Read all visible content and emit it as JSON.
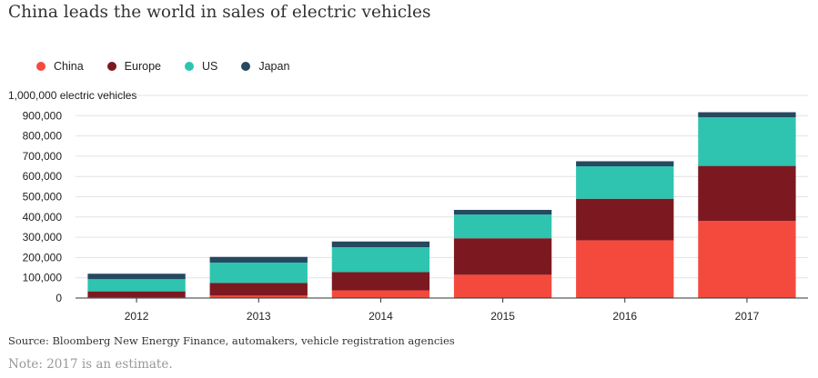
{
  "title": "China leads the world in sales of electric vehicles",
  "source": "Source: Bloomberg New Energy Finance, automakers, vehicle registration agencies",
  "note": "Note: 2017 is an estimate.",
  "chart_data": {
    "type": "bar",
    "stacked": true,
    "title": "China leads the world in sales of electric vehicles",
    "ylabel": "electric vehicles",
    "ylim": [
      0,
      1000000
    ],
    "yticks": [
      0,
      100000,
      200000,
      300000,
      400000,
      500000,
      600000,
      700000,
      800000,
      900000,
      1000000
    ],
    "ytick_labels": [
      "0",
      "100,000",
      "200,000",
      "300,000",
      "400,000",
      "500,000",
      "600,000",
      "700,000",
      "800,000",
      "900,000",
      "1,000,000 electric vehicles"
    ],
    "grid": true,
    "legend_position": "top-left",
    "categories": [
      "2012",
      "2013",
      "2014",
      "2015",
      "2016",
      "2017"
    ],
    "series": [
      {
        "name": "China",
        "color": "#f44a3e",
        "values": [
          3000,
          12000,
          38000,
          115000,
          285000,
          380000
        ]
      },
      {
        "name": "Europe",
        "color": "#7c1920",
        "values": [
          30000,
          63000,
          90000,
          180000,
          205000,
          272000
        ]
      },
      {
        "name": "US",
        "color": "#2ec4b0",
        "values": [
          60000,
          100000,
          123000,
          117000,
          160000,
          240000
        ]
      },
      {
        "name": "Japan",
        "color": "#25495e",
        "values": [
          27000,
          28000,
          28000,
          23000,
          25000,
          25000
        ]
      }
    ]
  }
}
